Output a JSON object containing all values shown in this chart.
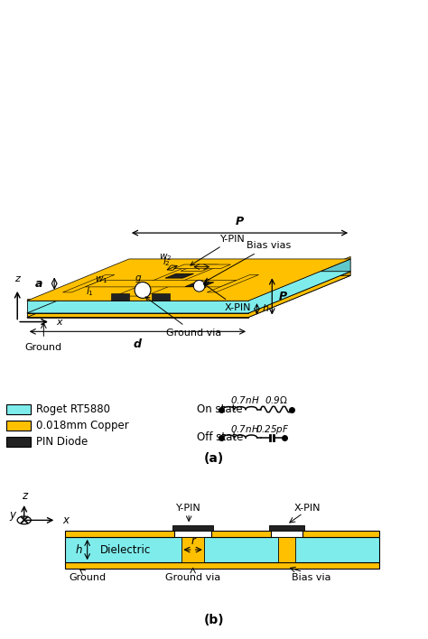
{
  "cyan": "#7FECEC",
  "gold": "#FFC000",
  "dark": "#222222",
  "white": "#FFFFFF",
  "black": "#000000",
  "label_a": "(a)",
  "label_b": "(b)",
  "dim_P": "P",
  "dim_a": "a",
  "dim_d": "d",
  "dim_h": "h",
  "dim_w1": "w$_1$",
  "dim_w2": "w$_2$",
  "dim_l1": "l$_1$",
  "dim_l2": "l$_2$",
  "dim_g": "g",
  "dim_r": "r",
  "lbl_biasvia": "Bias vias",
  "lbl_ypin": "Y-PIN",
  "lbl_xpin": "X-PIN",
  "lbl_gndvia": "Ground via",
  "lbl_ground": "Ground",
  "lbl_dielectric": "Dielectric",
  "legend_cyan": "Roget RT5880",
  "legend_gold": "0.018mm Copper",
  "legend_dark": "PIN Diode",
  "on_state": "On state",
  "off_state": "Off state",
  "on_L": "0.7$nH$",
  "on_R": "0.9$\\Omega$",
  "off_L": "0.7$nH$",
  "off_C": "0.25$pF$"
}
